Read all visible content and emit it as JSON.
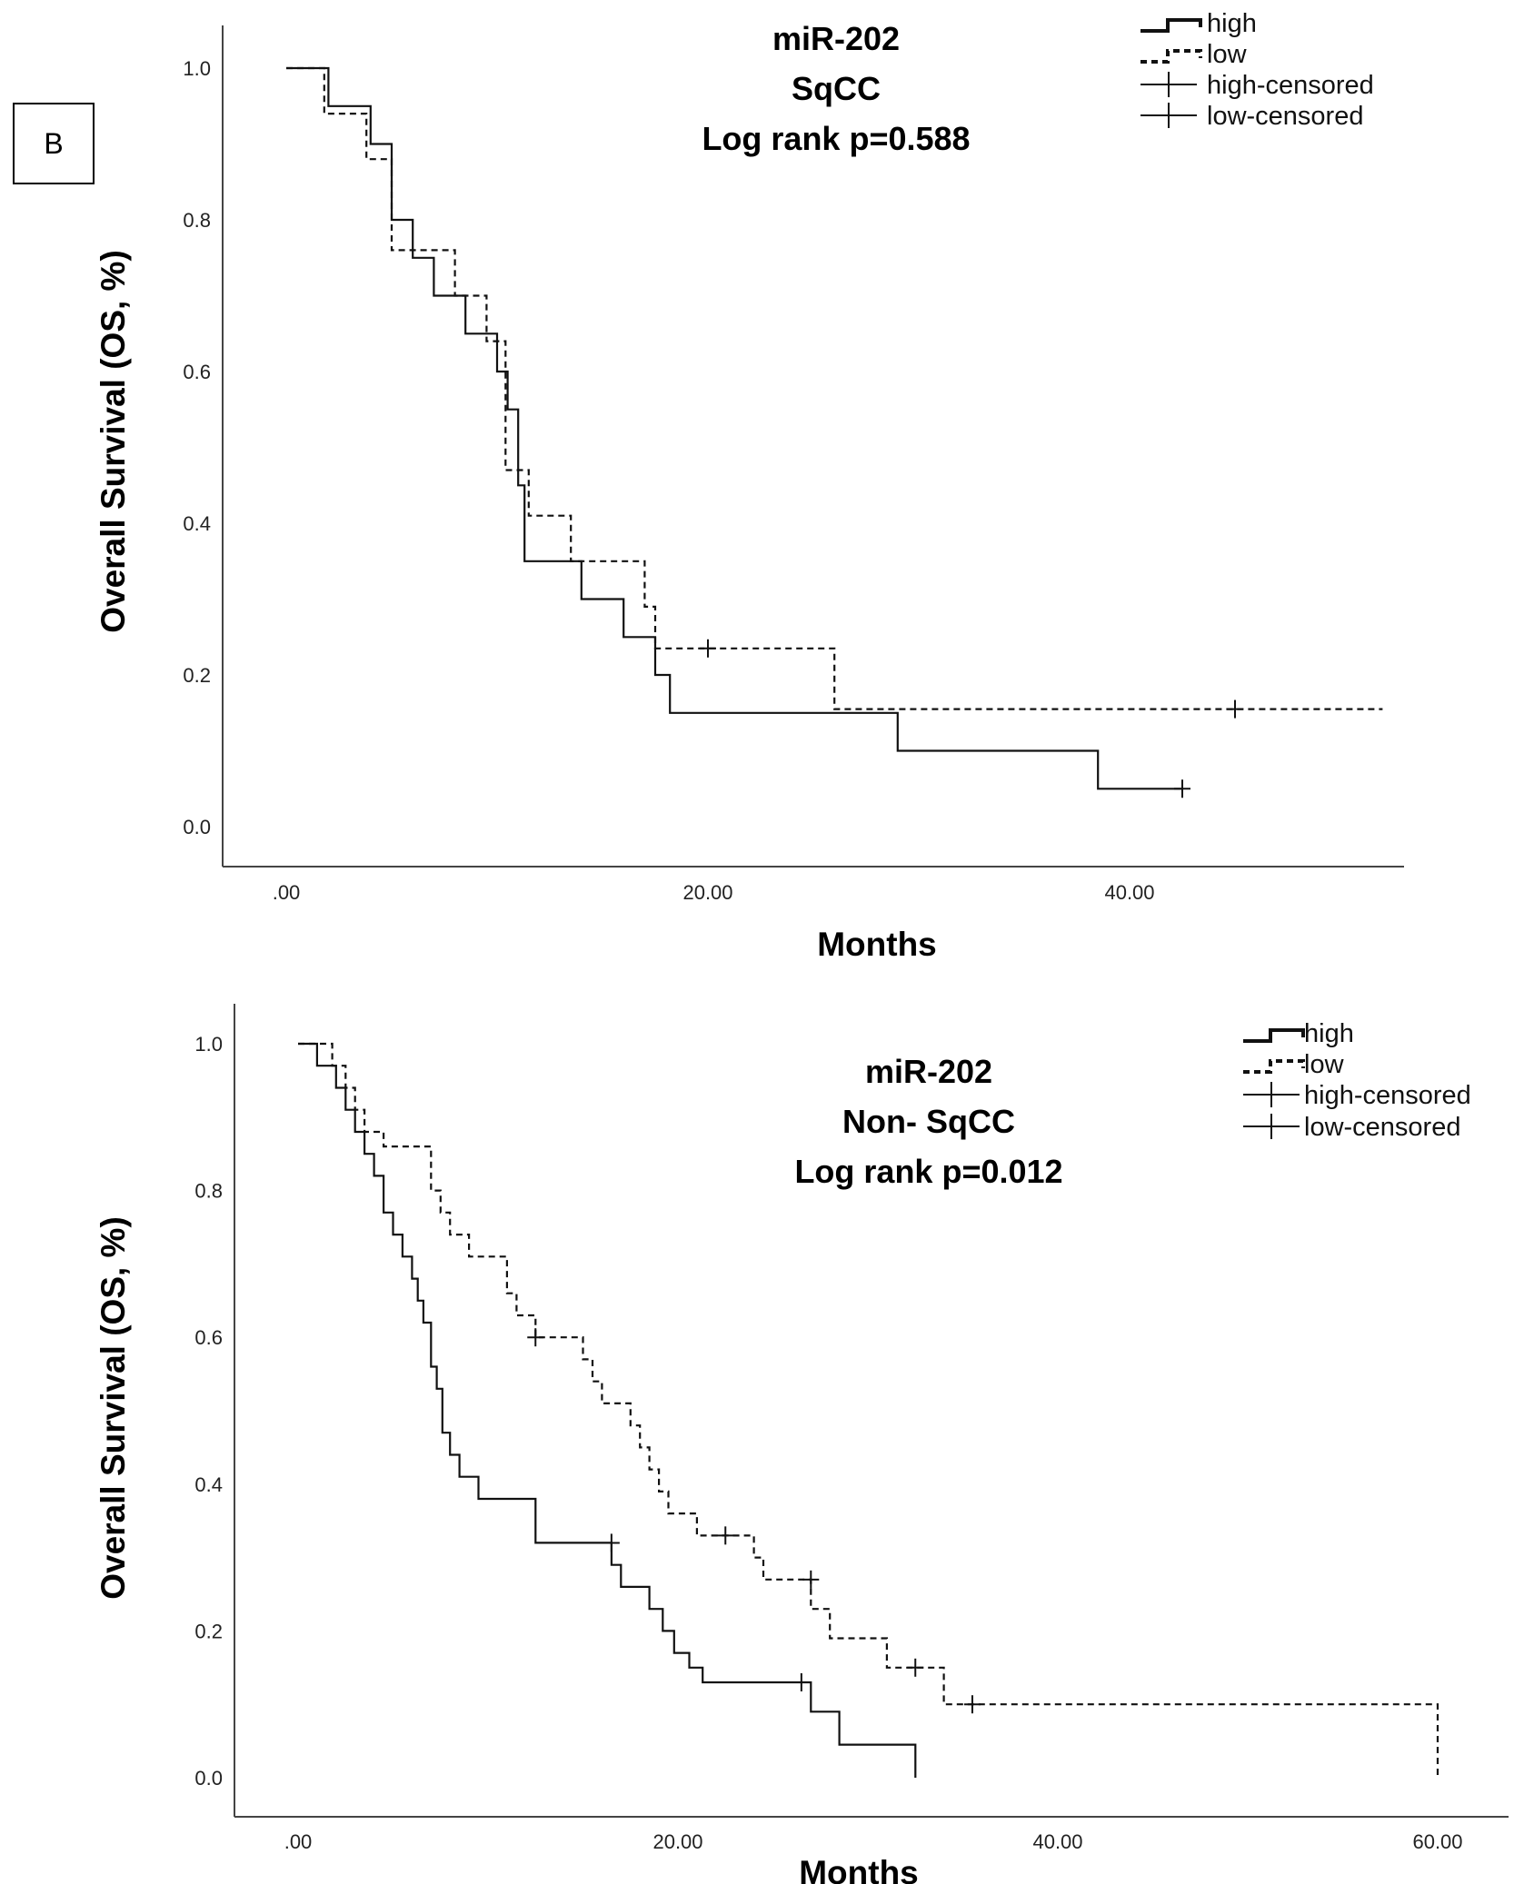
{
  "panel_label": "B",
  "chart_data": [
    {
      "type": "line",
      "subtype": "kaplan-meier",
      "title": [
        "miR-202",
        "SqCC",
        "Log rank p=0.588"
      ],
      "xlabel": "Months",
      "ylabel": "Overall Survival (OS, %)",
      "xlim": [
        -3,
        52
      ],
      "ylim": [
        -0.05,
        1.05
      ],
      "xticks": [
        0,
        20,
        40
      ],
      "xtick_labels": [
        ".00",
        "20.00",
        "40.00"
      ],
      "yticks": [
        0,
        0.2,
        0.4,
        0.6,
        0.8,
        1.0
      ],
      "ytick_labels": [
        "0.0",
        "0.2",
        "0.4",
        "0.6",
        "0.8",
        "1.0"
      ],
      "legend": [
        "high",
        "low",
        "high-censored",
        "low-censored"
      ],
      "legend_position": "top-right",
      "series": [
        {
          "name": "high",
          "style": "solid",
          "steps": [
            [
              0,
              1.0
            ],
            [
              2,
              0.95
            ],
            [
              4,
              0.9
            ],
            [
              5,
              0.8
            ],
            [
              6,
              0.75
            ],
            [
              7,
              0.7
            ],
            [
              8.5,
              0.65
            ],
            [
              10,
              0.6
            ],
            [
              10.5,
              0.55
            ],
            [
              11,
              0.45
            ],
            [
              11.3,
              0.35
            ],
            [
              14,
              0.3
            ],
            [
              16,
              0.25
            ],
            [
              17.5,
              0.2
            ],
            [
              18.2,
              0.15
            ],
            [
              29,
              0.1
            ],
            [
              38.5,
              0.05
            ],
            [
              42.5,
              0.05
            ]
          ],
          "censored": [
            [
              42.5,
              0.05
            ]
          ]
        },
        {
          "name": "low",
          "style": "dashed",
          "steps": [
            [
              0,
              1.0
            ],
            [
              1.8,
              0.94
            ],
            [
              3.8,
              0.88
            ],
            [
              5,
              0.76
            ],
            [
              8,
              0.7
            ],
            [
              9.5,
              0.64
            ],
            [
              10.4,
              0.47
            ],
            [
              11.5,
              0.41
            ],
            [
              13.5,
              0.35
            ],
            [
              17,
              0.29
            ],
            [
              17.5,
              0.235
            ],
            [
              26,
              0.155
            ],
            [
              52,
              0.155
            ]
          ],
          "censored": [
            [
              20,
              0.235
            ],
            [
              45,
              0.155
            ]
          ]
        }
      ]
    },
    {
      "type": "line",
      "subtype": "kaplan-meier",
      "title": [
        "miR-202",
        "Non- SqCC",
        "Log rank p=0.012"
      ],
      "xlabel": "Months",
      "ylabel": "Overall Survival (OS, %)",
      "xlim": [
        -3,
        63
      ],
      "ylim": [
        -0.05,
        1.05
      ],
      "xticks": [
        0,
        20,
        40,
        60
      ],
      "xtick_labels": [
        ".00",
        "20.00",
        "40.00",
        "60.00"
      ],
      "yticks": [
        0,
        0.2,
        0.4,
        0.6,
        0.8,
        1.0
      ],
      "ytick_labels": [
        "0.0",
        "0.2",
        "0.4",
        "0.6",
        "0.8",
        "1.0"
      ],
      "legend": [
        "high",
        "low",
        "high-censored",
        "low-censored"
      ],
      "legend_position": "top-right",
      "series": [
        {
          "name": "high",
          "style": "solid",
          "steps": [
            [
              0,
              1.0
            ],
            [
              1,
              0.97
            ],
            [
              2,
              0.94
            ],
            [
              2.5,
              0.91
            ],
            [
              3,
              0.88
            ],
            [
              3.5,
              0.85
            ],
            [
              4,
              0.82
            ],
            [
              4.5,
              0.77
            ],
            [
              5,
              0.74
            ],
            [
              5.5,
              0.71
            ],
            [
              6,
              0.68
            ],
            [
              6.3,
              0.65
            ],
            [
              6.6,
              0.62
            ],
            [
              7,
              0.56
            ],
            [
              7.3,
              0.53
            ],
            [
              7.6,
              0.47
            ],
            [
              8,
              0.44
            ],
            [
              8.5,
              0.41
            ],
            [
              9.5,
              0.38
            ],
            [
              12.5,
              0.32
            ],
            [
              16.5,
              0.29
            ],
            [
              17,
              0.26
            ],
            [
              18.5,
              0.23
            ],
            [
              19.2,
              0.2
            ],
            [
              19.8,
              0.17
            ],
            [
              20.6,
              0.15
            ],
            [
              21.3,
              0.13
            ],
            [
              27,
              0.09
            ],
            [
              28.5,
              0.045
            ],
            [
              32.5,
              0.0
            ]
          ],
          "censored": [
            [
              16.5,
              0.32
            ],
            [
              26.5,
              0.13
            ]
          ]
        },
        {
          "name": "low",
          "style": "dashed",
          "steps": [
            [
              0,
              1.0
            ],
            [
              1.8,
              0.97
            ],
            [
              2.5,
              0.94
            ],
            [
              3,
              0.91
            ],
            [
              3.5,
              0.88
            ],
            [
              4.5,
              0.86
            ],
            [
              7,
              0.8
            ],
            [
              7.5,
              0.77
            ],
            [
              8,
              0.74
            ],
            [
              9,
              0.71
            ],
            [
              11,
              0.66
            ],
            [
              11.5,
              0.63
            ],
            [
              12.5,
              0.6
            ],
            [
              15,
              0.57
            ],
            [
              15.5,
              0.54
            ],
            [
              16,
              0.51
            ],
            [
              17.5,
              0.48
            ],
            [
              18,
              0.45
            ],
            [
              18.5,
              0.42
            ],
            [
              19,
              0.39
            ],
            [
              19.5,
              0.36
            ],
            [
              21,
              0.33
            ],
            [
              24,
              0.3
            ],
            [
              24.5,
              0.27
            ],
            [
              27,
              0.23
            ],
            [
              28,
              0.19
            ],
            [
              31,
              0.15
            ],
            [
              34,
              0.1
            ],
            [
              60,
              0.1
            ],
            [
              60,
              0.0
            ]
          ],
          "censored": [
            [
              12.5,
              0.6
            ],
            [
              22.5,
              0.33
            ],
            [
              27,
              0.27
            ],
            [
              32.5,
              0.15
            ],
            [
              35.5,
              0.1
            ]
          ]
        }
      ]
    }
  ]
}
